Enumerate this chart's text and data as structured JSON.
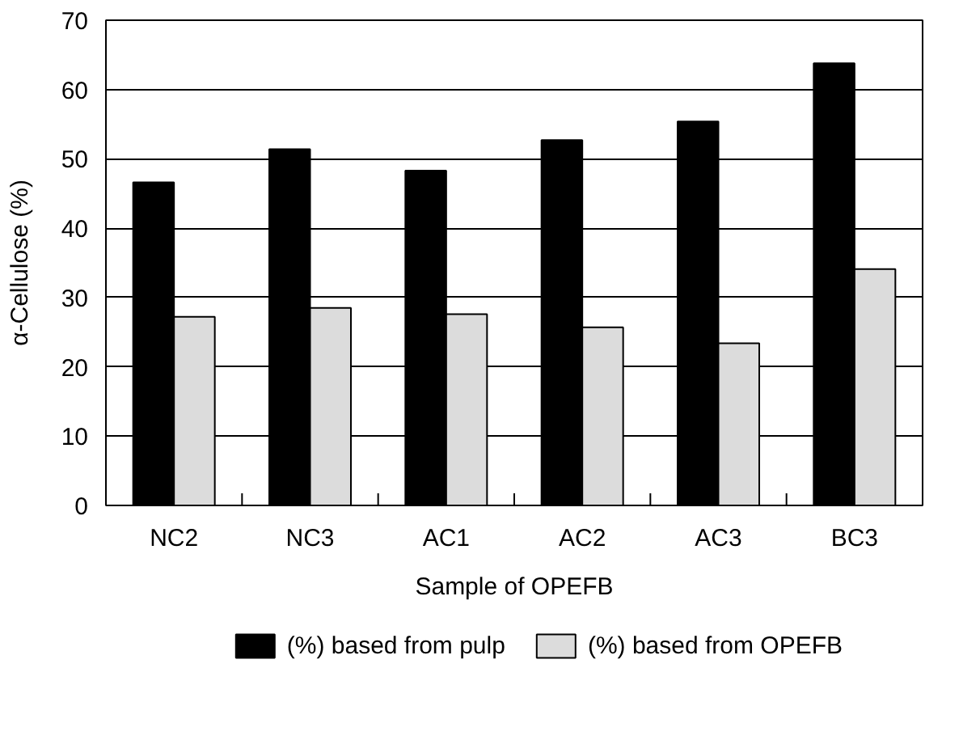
{
  "chart_data": {
    "type": "bar",
    "xlabel": "Sample of OPEFB",
    "ylabel": "α-Cellulose (%)",
    "categories": [
      "NC2",
      "NC3",
      "AC1",
      "AC2",
      "AC3",
      "BC3"
    ],
    "series": [
      {
        "name": "(%) based from pulp",
        "color": "#000000",
        "values": [
          46.6,
          51.4,
          48.3,
          52.7,
          55.4,
          63.8
        ]
      },
      {
        "name": "(%) based from OPEFB",
        "color": "#dcdcdc",
        "values": [
          27.2,
          28.5,
          27.6,
          25.7,
          23.4,
          34.1
        ]
      }
    ],
    "ylim": [
      0,
      70
    ],
    "yticks": [
      0,
      10,
      20,
      30,
      40,
      50,
      60,
      70
    ],
    "grid": "y",
    "legend": "bottom"
  }
}
